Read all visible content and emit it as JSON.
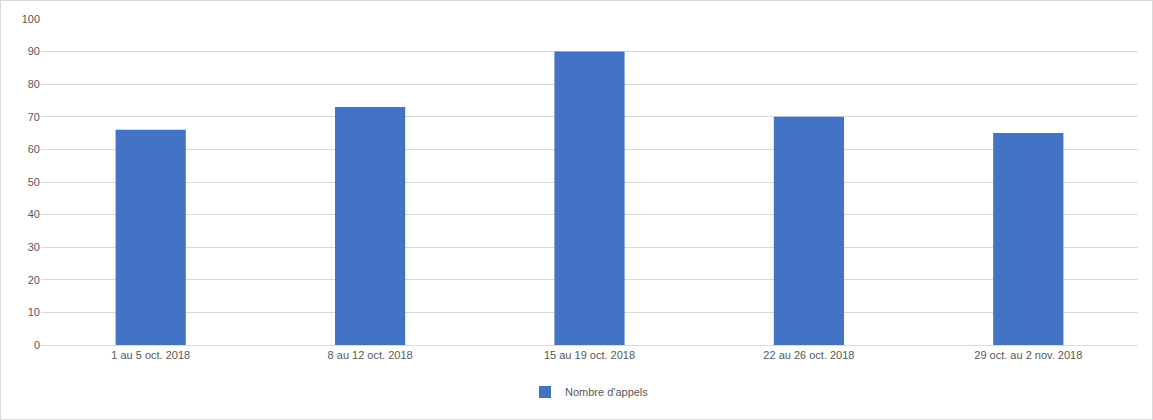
{
  "chart_data": {
    "type": "bar",
    "categories": [
      "1 au 5 oct. 2018",
      "8 au 12 oct. 2018",
      "15 au 19 oct. 2018",
      "22 au 26 oct. 2018",
      "29 oct. au 2 nov. 2018"
    ],
    "series": [
      {
        "name": "Nombre d'appels",
        "color": "#4472c4",
        "values": [
          66,
          73,
          90,
          70,
          65
        ]
      }
    ],
    "ylim": [
      0,
      100
    ],
    "yticks": [
      0,
      10,
      20,
      30,
      40,
      50,
      60,
      70,
      80,
      90,
      100
    ],
    "grid": true,
    "legend": "bottom"
  }
}
